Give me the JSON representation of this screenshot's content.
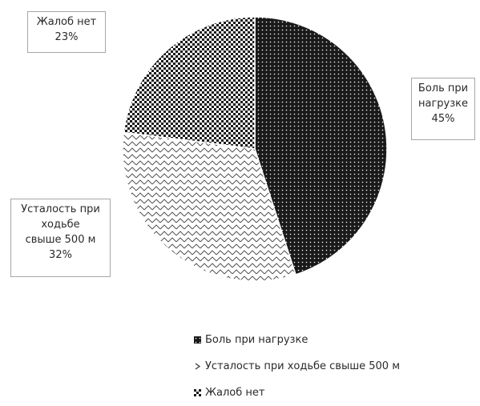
{
  "chart_data": {
    "type": "pie",
    "title": "",
    "slices": [
      {
        "name": "Боль при нагрузке",
        "value": 45,
        "pct_label": "45%",
        "label_lines": [
          "Боль при",
          "нагрузке",
          "45%"
        ],
        "pattern": "dots"
      },
      {
        "name": "Усталость при ходьбе свыше 500 м",
        "value": 32,
        "pct_label": "32%",
        "label_lines": [
          "Усталость при",
          "ходьбе",
          "свыше 500 м",
          "32%"
        ],
        "pattern": "zigzag"
      },
      {
        "name": "Жалоб нет",
        "value": 23,
        "pct_label": "23%",
        "label_lines": [
          "Жалоб нет",
          "23%"
        ],
        "pattern": "checker"
      }
    ],
    "legend_position": "bottom",
    "colors": {
      "dark": "#1a1a1a",
      "light": "#ffffff",
      "border": "#a6a6a6"
    }
  }
}
